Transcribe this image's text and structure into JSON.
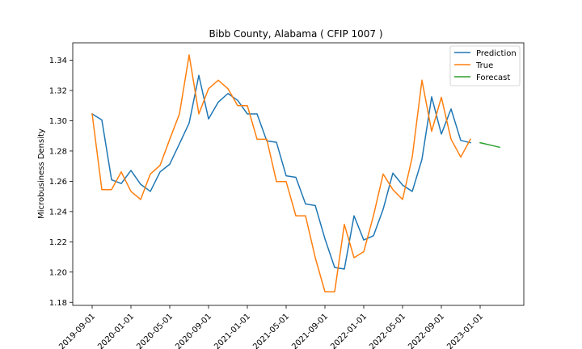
{
  "chart_data": {
    "type": "line",
    "title": "Bibb County, Alabama ( CFIP 1007 )",
    "xlabel": "",
    "ylabel": "Microbusiness Density",
    "x_tick_labels": [
      "2019-09-01",
      "2020-01-01",
      "2020-05-01",
      "2020-09-01",
      "2021-01-01",
      "2021-05-01",
      "2021-09-01",
      "2022-01-01",
      "2022-05-01",
      "2022-09-01",
      "2023-01-01"
    ],
    "y_ticks": [
      1.18,
      1.2,
      1.22,
      1.24,
      1.26,
      1.28,
      1.3,
      1.32,
      1.34
    ],
    "y_tick_labels": [
      "1.18",
      "1.20",
      "1.22",
      "1.24",
      "1.26",
      "1.28",
      "1.30",
      "1.32",
      "1.34"
    ],
    "ylim": [
      1.178,
      1.3515
    ],
    "xlim_months": [
      -2.0,
      44.5
    ],
    "x_months": [
      0,
      1,
      2,
      3,
      4,
      5,
      6,
      7,
      8,
      9,
      10,
      11,
      12,
      13,
      14,
      15,
      16,
      17,
      18,
      19,
      20,
      21,
      22,
      23,
      24,
      25,
      26,
      27,
      28,
      29,
      30,
      31,
      32,
      33,
      34,
      35,
      36,
      37,
      38,
      39
    ],
    "legend_position": "top-right",
    "series": [
      {
        "name": "Prediction",
        "color": "#1f77b4",
        "x": [
          0,
          1,
          2,
          3,
          4,
          5,
          6,
          7,
          8,
          9,
          10,
          11,
          12,
          13,
          14,
          15,
          16,
          17,
          18,
          19,
          20,
          21,
          22,
          23,
          24,
          25,
          26,
          27,
          28,
          29,
          30,
          31,
          32,
          33,
          34,
          35,
          36,
          37,
          38,
          39
        ],
        "values": [
          1.3045,
          1.3005,
          1.261,
          1.2585,
          1.2672,
          1.258,
          1.2533,
          1.2662,
          1.2713,
          1.2848,
          1.2985,
          1.33,
          1.3012,
          1.3123,
          1.318,
          1.3135,
          1.3045,
          1.3045,
          1.2867,
          1.2858,
          1.2636,
          1.2626,
          1.245,
          1.244,
          1.222,
          1.203,
          1.202,
          1.2372,
          1.2212,
          1.224,
          1.2415,
          1.2654,
          1.2575,
          1.2533,
          1.2745,
          1.3158,
          1.2912,
          1.3078,
          1.287,
          1.2855
        ]
      },
      {
        "name": "True",
        "color": "#ff7f0e",
        "x": [
          0,
          1,
          2,
          3,
          4,
          5,
          6,
          7,
          8,
          9,
          10,
          11,
          12,
          13,
          14,
          15,
          16,
          17,
          18,
          19,
          20,
          21,
          22,
          23,
          24,
          25,
          26,
          27,
          28,
          29,
          30,
          31,
          32,
          33,
          34,
          35,
          36,
          37,
          38,
          39
        ],
        "values": [
          1.3045,
          1.2545,
          1.2545,
          1.2662,
          1.2533,
          1.248,
          1.2648,
          1.2705,
          1.2878,
          1.3045,
          1.3435,
          1.3045,
          1.3212,
          1.3268,
          1.3212,
          1.31,
          1.31,
          1.2878,
          1.2878,
          1.2598,
          1.2598,
          1.2372,
          1.2372,
          1.2095,
          1.187,
          1.187,
          1.2315,
          1.2095,
          1.2135,
          1.2372,
          1.2648,
          1.2545,
          1.248,
          1.276,
          1.3268,
          1.293,
          1.3155,
          1.2878,
          1.276,
          1.2878
        ]
      },
      {
        "name": "Forecast",
        "color": "#2ca02c",
        "x": [
          40,
          41,
          42
        ],
        "values": [
          1.2855,
          1.284,
          1.2825
        ]
      }
    ]
  }
}
